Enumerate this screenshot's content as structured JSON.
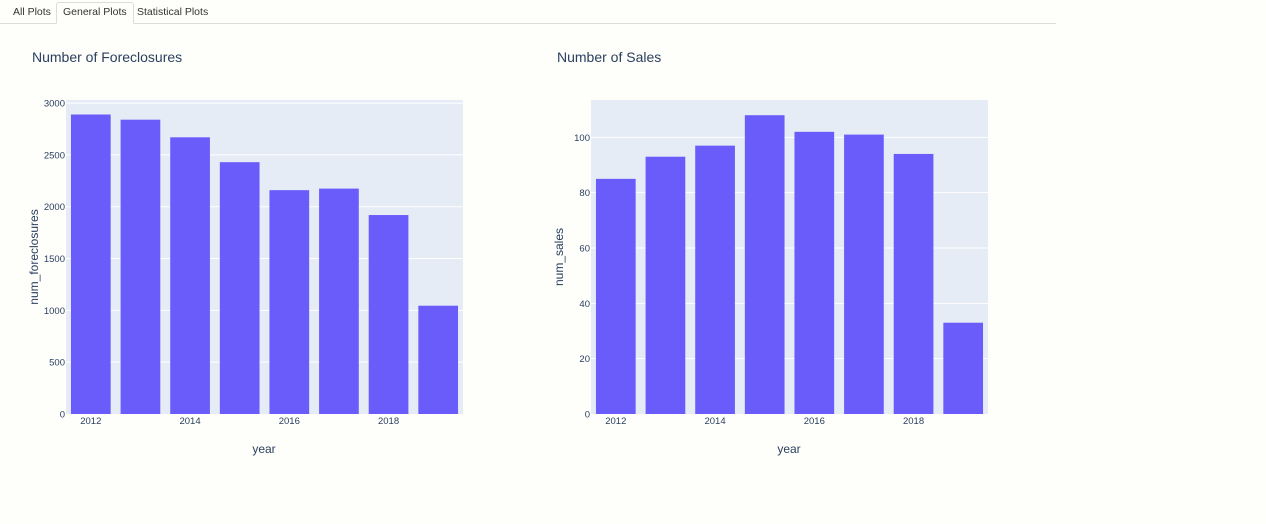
{
  "tabs": [
    {
      "label": "All Plots",
      "active": false
    },
    {
      "label": "General Plots",
      "active": true
    },
    {
      "label": "Statistical Plots",
      "active": false
    }
  ],
  "colors": {
    "bar": "#6a5cfb",
    "plot_bg": "#e5ecf6",
    "grid": "#ffffff",
    "text": "#2a3f5f"
  },
  "chart_data": [
    {
      "type": "bar",
      "title": "Number of Foreclosures",
      "xlabel": "year",
      "ylabel": "num_foreclosures",
      "x": [
        2012,
        2013,
        2014,
        2015,
        2016,
        2017,
        2018,
        2019
      ],
      "values": [
        2890,
        2840,
        2670,
        2430,
        2160,
        2175,
        1920,
        1045
      ],
      "ylim": [
        0,
        3030
      ],
      "yticks": [
        0,
        500,
        1000,
        1500,
        2000,
        2500,
        3000
      ],
      "xticks": [
        2012,
        2014,
        2016,
        2018
      ],
      "grid": true
    },
    {
      "type": "bar",
      "title": "Number of Sales",
      "xlabel": "year",
      "ylabel": "num_sales",
      "x": [
        2012,
        2013,
        2014,
        2015,
        2016,
        2017,
        2018,
        2019
      ],
      "values": [
        85,
        93,
        97,
        108,
        102,
        101,
        94,
        33
      ],
      "ylim": [
        0,
        113.5
      ],
      "yticks": [
        0,
        20,
        40,
        60,
        80,
        100
      ],
      "xticks": [
        2012,
        2014,
        2016,
        2018
      ],
      "grid": true
    }
  ]
}
